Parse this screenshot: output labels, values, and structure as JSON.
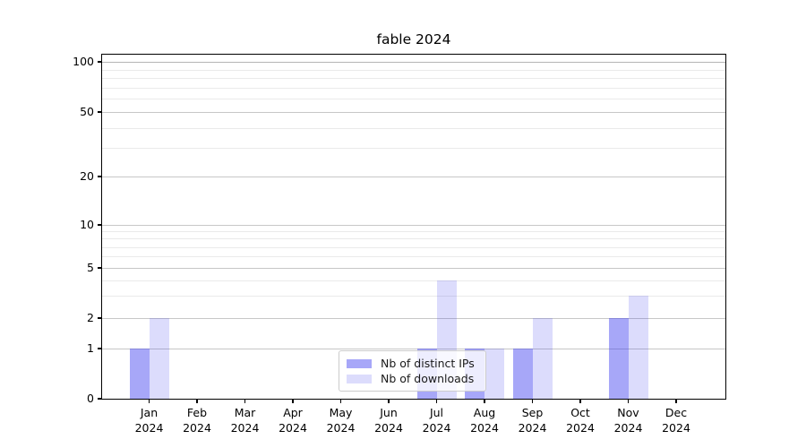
{
  "title": "fable 2024",
  "chart_data": {
    "type": "bar",
    "title": "fable 2024",
    "categories": [
      "Jan 2024",
      "Feb 2024",
      "Mar 2024",
      "Apr 2024",
      "May 2024",
      "Jun 2024",
      "Jul 2024",
      "Aug 2024",
      "Sep 2024",
      "Oct 2024",
      "Nov 2024",
      "Dec 2024"
    ],
    "months": [
      "Jan",
      "Feb",
      "Mar",
      "Apr",
      "May",
      "Jun",
      "Jul",
      "Aug",
      "Sep",
      "Oct",
      "Nov",
      "Dec"
    ],
    "year": "2024",
    "series": [
      {
        "name": "Nb of distinct IPs",
        "color": "rgba(50,50,238,0.43)",
        "values": [
          1,
          0,
          0,
          0,
          0,
          0,
          1,
          1,
          1,
          0,
          2,
          0
        ]
      },
      {
        "name": "Nb of downloads",
        "color": "rgba(50,50,238,0.17)",
        "values": [
          2,
          0,
          0,
          0,
          0,
          0,
          4,
          1,
          2,
          0,
          3,
          0
        ]
      }
    ],
    "yscale": "symlog",
    "ylim": [
      0,
      100
    ],
    "yticks": [
      0,
      1,
      2,
      5,
      10,
      20,
      50,
      100
    ],
    "minor_gridlines": [
      3,
      4,
      6,
      7,
      8,
      9,
      30,
      40,
      60,
      70,
      80,
      90
    ],
    "grid": "horizontal",
    "legend_position": "lower center"
  }
}
